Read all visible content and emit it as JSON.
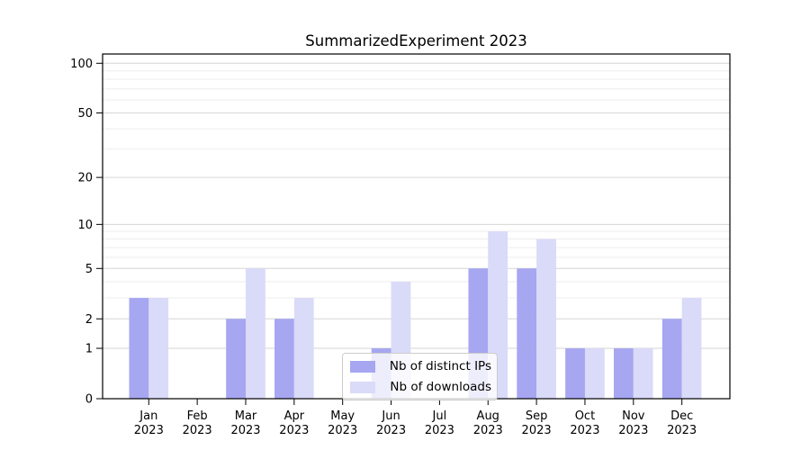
{
  "title": "SummarizedExperiment 2023",
  "colors": {
    "bar_distinct_ips": "#a6a6f1",
    "bar_downloads": "#dadaf9",
    "grid_major": "#d6d6d6",
    "grid_minor": "#eeeeee",
    "axis": "#000000",
    "background": "#ffffff",
    "legend_border": "#cccccc"
  },
  "chart_data": {
    "type": "bar",
    "title": "SummarizedExperiment 2023",
    "y_scale": "log1p",
    "grid": "horizontal",
    "legend_position": "inside-bottom-center",
    "xlabel": "",
    "ylabel": "",
    "categories": [
      "Jan",
      "Feb",
      "Mar",
      "Apr",
      "May",
      "Jun",
      "Jul",
      "Aug",
      "Sep",
      "Oct",
      "Nov",
      "Dec"
    ],
    "category_year": "2023",
    "series": [
      {
        "name": "Nb of distinct IPs",
        "color": "#a6a6f1",
        "values": [
          3,
          0,
          2,
          2,
          0,
          1,
          0,
          5,
          5,
          1,
          1,
          2
        ]
      },
      {
        "name": "Nb of downloads",
        "color": "#dadaf9",
        "values": [
          3,
          0,
          5,
          3,
          0,
          4,
          0,
          9,
          8,
          1,
          1,
          3
        ]
      }
    ],
    "y_ticks": [
      0,
      1,
      2,
      5,
      10,
      20,
      50,
      100
    ],
    "y_minor_ticks": [
      3,
      4,
      6,
      7,
      8,
      9,
      30,
      40,
      60,
      70,
      80,
      90
    ],
    "ylim": [
      0,
      115
    ]
  }
}
